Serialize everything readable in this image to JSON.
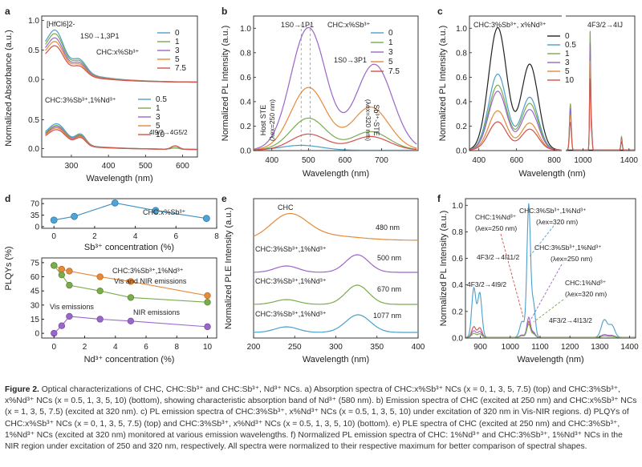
{
  "caption": {
    "label": "Figure 2.",
    "text": "Optical characterizations of CHC, CHC:Sb³⁺ and CHC:Sb³⁺, Nd³⁺ NCs. a) Absorption spectra of CHC:x%Sb³⁺ NCs (x = 0, 1, 3, 5, 7.5) (top) and CHC:3%Sb³⁺, x%Nd³⁺ NCs (x = 0.5, 1, 3, 5, 10) (bottom), showing characteristic absorption band of Nd³⁺ (580 nm). b) Emission spectra of CHC (excited at 250 nm) and CHC:x%Sb³⁺ NCs (x = 1, 3, 5, 7.5) (excited at 320 nm). c) PL emission spectra of CHC:3%Sb³⁺, x%Nd³⁺ NCs (x = 0.5, 1, 3, 5, 10) under excitation of 320 nm in Vis-NIR regions. d) PLQYs of CHC:x%Sb³⁺ NCs (x = 0, 1, 3, 5, 7.5) (top) and CHC:3%Sb³⁺, x%Nd³⁺ NCs (x = 0.5, 1, 3, 5, 10) (bottom). e) PLE spectra of CHC (excited at 250 nm) and CHC:3%Sb³⁺, 1%Nd³⁺ NCs (excited at 320 nm) monitored at various emission wavelengths. f) Normalized PL emission spectra of CHC: 1%Nd³⁺ and CHC:3%Sb³⁺, 1%Nd³⁺ NCs in the NIR region under excitation of 250 and 320 nm, respectively. All spectra were normalized to their respective maximum for better comparison of spectral shapes."
  },
  "colors": {
    "c0": "#4c9fcb",
    "c1": "#7aab4e",
    "c2": "#9a66c8",
    "c3": "#e58a3a",
    "c4": "#d0524c",
    "black": "#222222"
  },
  "chart_data": [
    {
      "panel": "a",
      "type": "line",
      "xlabel": "Wavelength (nm)",
      "ylabel": "Normalized Absorbance (a.u.)",
      "xlim": [
        220,
        640
      ],
      "xticks": [
        300,
        400,
        500,
        600
      ],
      "top": {
        "annotation": "[HfCl6]2-",
        "band": "1S0→1,3P1",
        "legend_title": "CHC:x%Sb³⁺",
        "legend": [
          "0",
          "1",
          "3",
          "5",
          "7.5"
        ],
        "yticks": [
          0.0,
          0.5,
          1.0
        ]
      },
      "bottom": {
        "legend_title": "CHC:3%Sb³⁺,1%Nd³⁺",
        "band": "4I9/2→4G5/2",
        "legend": [
          "0.5",
          "1",
          "3",
          "5",
          "10"
        ],
        "yticks": [
          0.0,
          0.5
        ]
      }
    },
    {
      "panel": "b",
      "type": "line",
      "xlabel": "Wavelength (nm)",
      "ylabel": "Normalized PL Intensity (a.u.)",
      "xlim": [
        350,
        800
      ],
      "ylim": [
        0,
        1.1
      ],
      "xticks": [
        400,
        500,
        600,
        700
      ],
      "yticks": [
        0.0,
        0.2,
        0.4,
        0.6,
        0.8,
        1.0
      ],
      "legend_title": "CHC:x%Sb³⁺",
      "legend": [
        "0",
        "1",
        "3",
        "5",
        "7.5"
      ],
      "annotations": [
        "1S0→1P1",
        "1S0→3P1",
        "Host STE",
        "(λex=250 nm)",
        "Sb³⁺-STE",
        "(λex=320 nm)"
      ],
      "series": [
        {
          "name": "0",
          "peak": 480,
          "peak_height": 0.04
        },
        {
          "name": "1",
          "peaks": [
            [
              500,
              0.26
            ],
            [
              670,
              0.15
            ]
          ]
        },
        {
          "name": "3",
          "peaks": [
            [
              500,
              1.0
            ],
            [
              680,
              0.7
            ]
          ]
        },
        {
          "name": "5",
          "peaks": [
            [
              500,
              0.51
            ],
            [
              670,
              0.35
            ]
          ]
        },
        {
          "name": "7.5",
          "peaks": [
            [
              500,
              0.13
            ],
            [
              670,
              0.11
            ]
          ]
        }
      ]
    },
    {
      "panel": "c",
      "type": "line",
      "xlabel": "Wavelength (nm)",
      "ylabel": "Normalized PL Intensity (a.u.)",
      "xlim_vis": [
        350,
        840
      ],
      "xlim_nir": [
        850,
        1450
      ],
      "xticks": [
        400,
        600,
        800,
        1000,
        1400
      ],
      "yticks": [
        0.0,
        0.2,
        0.4,
        0.6,
        0.8,
        1.0
      ],
      "legend_title": "CHC:3%Sb³⁺, x%Nd³⁺",
      "legend": [
        "0",
        "0.5",
        "1",
        "3",
        "5",
        "10"
      ],
      "nir_label": "4F3/2→4IJ",
      "series": [
        {
          "name": "0",
          "peaks": [
            [
              500,
              1.0
            ],
            [
              670,
              0.7
            ]
          ]
        },
        {
          "name": "0.5",
          "peaks": [
            [
              500,
              0.62
            ],
            [
              670,
              0.43
            ]
          ]
        },
        {
          "name": "1",
          "peaks": [
            [
              500,
              0.53
            ],
            [
              670,
              0.38
            ]
          ]
        },
        {
          "name": "3",
          "peaks": [
            [
              500,
              0.48
            ],
            [
              670,
              0.33
            ]
          ]
        },
        {
          "name": "5",
          "peaks": [
            [
              500,
              0.32
            ],
            [
              670,
              0.22
            ]
          ]
        },
        {
          "name": "10",
          "peaks": [
            [
              500,
              0.23
            ],
            [
              670,
              0.17
            ]
          ]
        }
      ]
    },
    {
      "panel": "d",
      "type": "scatter",
      "ylabel": "PLQYs (%)",
      "top": {
        "xlabel": "Sb³⁺ concentration (%)",
        "label": "CHC:x%Sb³⁺",
        "x": [
          0,
          1,
          3,
          5,
          7.5
        ],
        "y": [
          20,
          31,
          72,
          49,
          25
        ],
        "yticks": [
          0,
          25,
          50,
          75
        ],
        "xticks": [
          0,
          2,
          4,
          6,
          8
        ]
      },
      "bottom": {
        "xlabel": "Nd³⁺ concentration (%)",
        "label": "CHC:3%Sb³⁺,1%Nd³⁺",
        "yticks": [
          0,
          15,
          30,
          45,
          60,
          75
        ],
        "xticks": [
          0,
          2,
          4,
          6,
          8,
          10
        ],
        "series": [
          {
            "name": "Vis and NIR emissions",
            "x": [
              0,
              0.5,
              1,
              3,
              5,
              10
            ],
            "y": [
              72,
              68,
              66,
              60,
              55,
              40
            ]
          },
          {
            "name": "Vis emissions",
            "x": [
              0,
              0.5,
              1,
              3,
              5,
              10
            ],
            "y": [
              72,
              62,
              51,
              45,
              38,
              33
            ]
          },
          {
            "name": "NIR emissions",
            "x": [
              0,
              0.5,
              1,
              3,
              5,
              10
            ],
            "y": [
              0,
              8,
              18,
              15,
              13,
              7
            ]
          }
        ]
      }
    },
    {
      "panel": "e",
      "type": "line",
      "xlabel": "Wavelength (nm)",
      "ylabel": "Normalized PLE Intensity (a.u.)",
      "xlim": [
        200,
        400
      ],
      "xticks": [
        200,
        250,
        300,
        350,
        400
      ],
      "series": [
        {
          "name": "CHC",
          "monitor": "480 nm"
        },
        {
          "name": "CHC:3%Sb³⁺,1%Nd³⁺",
          "monitor": "500 nm"
        },
        {
          "name": "CHC:3%Sb³⁺,1%Nd³⁺",
          "monitor": "670 nm"
        },
        {
          "name": "CHC:3%Sb³⁺,1%Nd³⁺",
          "monitor": "1077 nm"
        }
      ]
    },
    {
      "panel": "f",
      "type": "line",
      "xlabel": "Wavelength (nm)",
      "ylabel": "Normalized PL Intensity (a.u.)",
      "xlim": [
        850,
        1420
      ],
      "ylim": [
        0,
        1.05
      ],
      "xticks": [
        900,
        1000,
        1100,
        1200,
        1300,
        1400
      ],
      "yticks": [
        0.0,
        0.2,
        0.4,
        0.6,
        0.8,
        1.0
      ],
      "annotations": {
        "s1": "CHC:1%Nd³⁺",
        "s1ex": "(λex=250 nm)",
        "s2": "CHC:3%Sb³⁺,1%Nd³⁺",
        "s2ex": "(λex=320 nm)",
        "s3": "CHC:3%Sb³⁺,1%Nd³⁺",
        "s3ex": "(λex=250 nm)",
        "s4": "CHC:1%Nd³⁺",
        "s4ex": "(λex=320 nm)",
        "t1": "4F3/2→4I9/2",
        "t2": "4F3/2→4I11/2",
        "t3": "4F3/2→4I13/2"
      }
    }
  ]
}
